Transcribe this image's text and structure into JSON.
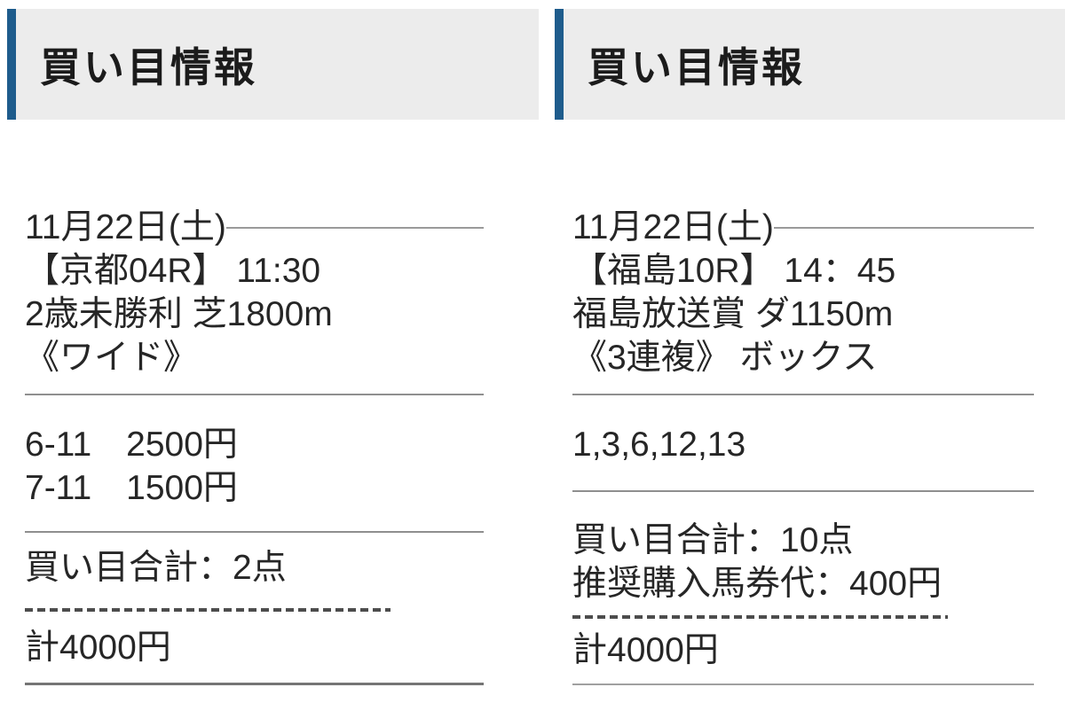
{
  "colors": {
    "accent_bar": "#1e5c8c",
    "header_bg": "#ececec",
    "text": "#262626",
    "rule": "#8f8f8f",
    "dash": "#4d4d4d",
    "page_bg": "#ffffff"
  },
  "panels": [
    {
      "header_title": "買い目情報",
      "date": "11月22日(土)",
      "race": {
        "name_time": "【京都04R】 11:30",
        "condition": "2歳未勝利 芝1800m",
        "bet_type": "《ワイド》"
      },
      "bets": [
        "6-11　2500円",
        "7-11　1500円"
      ],
      "summary": [
        "買い目合計：2点"
      ],
      "total": "計4000円"
    },
    {
      "header_title": "買い目情報",
      "date": "11月22日(土)",
      "race": {
        "name_time": "【福島10R】 14：45",
        "condition": "福島放送賞 ダ1150m",
        "bet_type": "《3連複》 ボックス"
      },
      "bets": [
        "1,3,6,12,13"
      ],
      "summary": [
        "買い目合計：10点",
        "推奨購入馬券代：400円"
      ],
      "total": "計4000円"
    }
  ]
}
